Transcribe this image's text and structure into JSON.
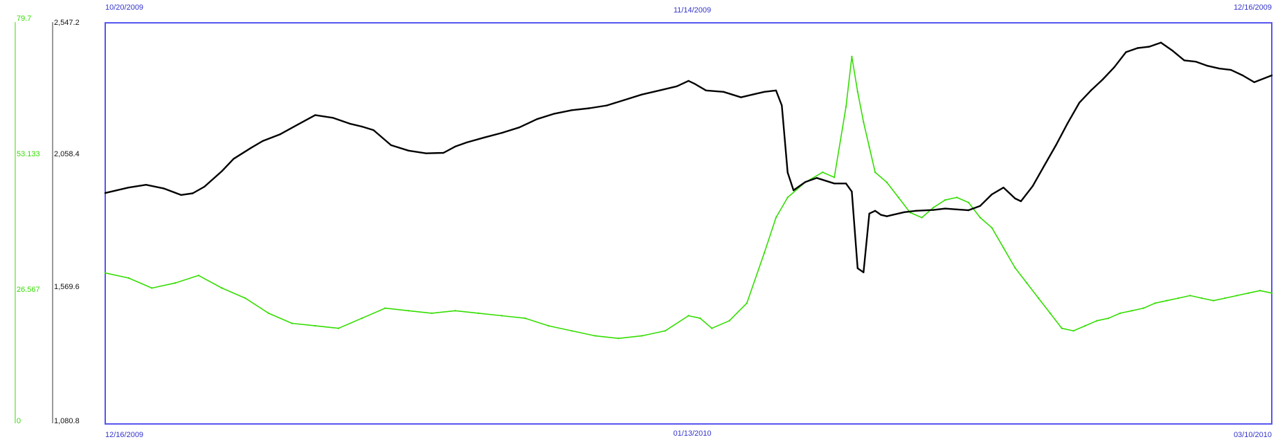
{
  "chart_data": {
    "type": "line",
    "title": "",
    "grid": false,
    "colors": {
      "frame": "#5555ee",
      "date_labels": "#3333cc",
      "green_series": "#33dd00",
      "black_series": "#000000"
    },
    "top_dates": [
      "10/20/2009",
      "11/14/2009",
      "12/16/2009"
    ],
    "bottom_dates": [
      "12/16/2009",
      "01/13/2010",
      "03/10/2010"
    ],
    "axes": {
      "green": {
        "ylim": [
          0,
          79.7
        ],
        "tick_labels": [
          "79.7",
          "53.133",
          "26.567",
          "0"
        ]
      },
      "black": {
        "ylim": [
          1080.8,
          2547.2
        ],
        "tick_labels": [
          "2,547.2",
          "2,058.4",
          "1,569.6",
          "1,080.8"
        ]
      }
    },
    "series": [
      {
        "axis": "black",
        "x": [
          0,
          0.02,
          0.035,
          0.05,
          0.065,
          0.075,
          0.085,
          0.1,
          0.11,
          0.125,
          0.135,
          0.15,
          0.165,
          0.18,
          0.195,
          0.21,
          0.22,
          0.23,
          0.245,
          0.26,
          0.275,
          0.29,
          0.3,
          0.31,
          0.325,
          0.34,
          0.355,
          0.37,
          0.385,
          0.4,
          0.415,
          0.43,
          0.445,
          0.46,
          0.475,
          0.49,
          0.5,
          0.505,
          0.515,
          0.53,
          0.545,
          0.555,
          0.565,
          0.575,
          0.58,
          0.585,
          0.59,
          0.6,
          0.61,
          0.625,
          0.635,
          0.64,
          0.645,
          0.65,
          0.655,
          0.66,
          0.665,
          0.67,
          0.675,
          0.685,
          0.695,
          0.71,
          0.72,
          0.73,
          0.74,
          0.75,
          0.76,
          0.77,
          0.78,
          0.785,
          0.795,
          0.805,
          0.815,
          0.825,
          0.835,
          0.845,
          0.855,
          0.865,
          0.875,
          0.885,
          0.895,
          0.905,
          0.915,
          0.925,
          0.935,
          0.945,
          0.955,
          0.965,
          0.975,
          0.985,
          1.0
        ],
        "values": [
          1925,
          1945,
          1955,
          1942,
          1918,
          1924,
          1948,
          2005,
          2050,
          2090,
          2115,
          2140,
          2175,
          2210,
          2200,
          2178,
          2168,
          2155,
          2100,
          2080,
          2070,
          2072,
          2095,
          2110,
          2128,
          2145,
          2165,
          2195,
          2215,
          2228,
          2235,
          2245,
          2265,
          2285,
          2300,
          2315,
          2335,
          2325,
          2300,
          2295,
          2275,
          2285,
          2295,
          2300,
          2245,
          2000,
          1935,
          1965,
          1980,
          1960,
          1960,
          1930,
          1650,
          1635,
          1850,
          1860,
          1845,
          1840,
          1845,
          1855,
          1860,
          1863,
          1868,
          1865,
          1862,
          1878,
          1920,
          1945,
          1905,
          1895,
          1950,
          2025,
          2100,
          2180,
          2255,
          2300,
          2340,
          2385,
          2440,
          2455,
          2460,
          2475,
          2445,
          2410,
          2405,
          2390,
          2380,
          2375,
          2355,
          2330,
          2355
        ]
      },
      {
        "axis": "green",
        "x": [
          0,
          0.02,
          0.04,
          0.06,
          0.08,
          0.1,
          0.12,
          0.14,
          0.16,
          0.18,
          0.2,
          0.22,
          0.24,
          0.26,
          0.28,
          0.3,
          0.32,
          0.34,
          0.36,
          0.38,
          0.4,
          0.42,
          0.44,
          0.46,
          0.48,
          0.5,
          0.51,
          0.52,
          0.535,
          0.55,
          0.565,
          0.575,
          0.585,
          0.6,
          0.615,
          0.625,
          0.635,
          0.64,
          0.645,
          0.65,
          0.655,
          0.66,
          0.67,
          0.68,
          0.69,
          0.7,
          0.71,
          0.72,
          0.73,
          0.74,
          0.75,
          0.76,
          0.77,
          0.78,
          0.79,
          0.8,
          0.81,
          0.82,
          0.83,
          0.84,
          0.85,
          0.86,
          0.87,
          0.88,
          0.89,
          0.9,
          0.91,
          0.92,
          0.93,
          0.94,
          0.95,
          0.96,
          0.97,
          0.98,
          0.99,
          1.0
        ],
        "values": [
          30,
          29,
          27,
          28,
          29.5,
          27,
          25,
          22,
          20,
          19.5,
          19,
          21,
          23,
          22.5,
          22,
          22.5,
          22,
          21.5,
          21,
          19.5,
          18.5,
          17.5,
          17,
          17.5,
          18.5,
          21.5,
          21,
          19,
          20.5,
          24,
          34,
          41,
          45,
          48,
          50,
          49,
          63,
          73,
          66,
          60,
          55,
          50,
          48,
          45,
          42,
          41,
          43,
          44.5,
          45,
          44,
          41,
          39,
          35,
          31,
          28,
          25,
          22,
          19,
          18.5,
          19.5,
          20.5,
          21,
          22,
          22.5,
          23,
          24,
          24.5,
          25,
          25.5,
          25,
          24.5,
          25,
          25.5,
          26,
          26.5,
          26
        ]
      }
    ]
  }
}
